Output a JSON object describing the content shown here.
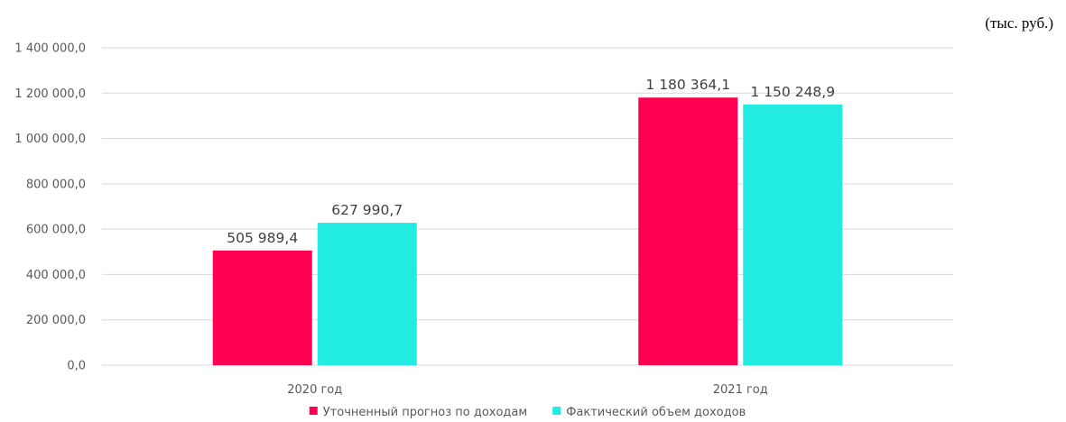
{
  "unit_note": "(тыс. руб.)",
  "colors": {
    "forecast": "#FF0050",
    "actual": "#22EBE1",
    "grid": "#D9D9D9",
    "text": "#595959"
  },
  "chart_data": {
    "type": "bar",
    "title": "",
    "xlabel": "",
    "ylabel": "",
    "ylim": [
      0,
      1400000
    ],
    "ytick_step": 200000,
    "ytick_labels": [
      "0,0",
      "200 000,0",
      "400 000,0",
      "600 000,0",
      "800 000,0",
      "1 000 000,0",
      "1 200 000,0",
      "1 400 000,0"
    ],
    "grid": true,
    "legend_position": "bottom",
    "categories": [
      "2020 год",
      "2021 год"
    ],
    "series": [
      {
        "name": "Уточненный прогноз по доходам",
        "color": "#FF0050",
        "values": [
          505989.4,
          1180364.1
        ],
        "labels": [
          "505 989,4",
          "1 180 364,1"
        ]
      },
      {
        "name": "Фактический объем доходов",
        "color": "#22EBE1",
        "values": [
          627990.7,
          1150248.9
        ],
        "labels": [
          "627 990,7",
          "1 150 248,9"
        ]
      }
    ]
  }
}
